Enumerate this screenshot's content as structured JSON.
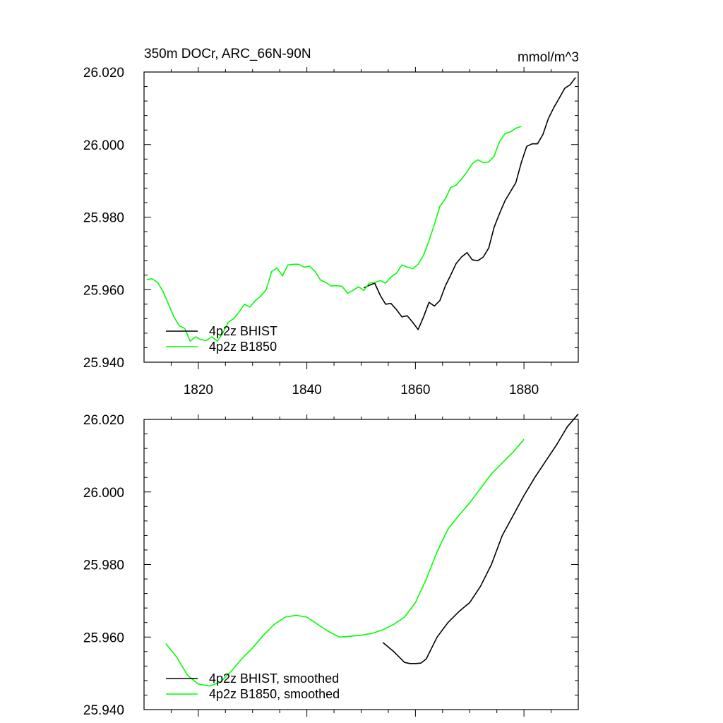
{
  "chart_data": [
    {
      "type": "line",
      "title_left": "350m DOCr, ARC_66N-90N",
      "title_right": "mmol/m^3",
      "xlim": [
        1810,
        1890
      ],
      "ylim": [
        25.94,
        26.02
      ],
      "x_ticks": [
        1820,
        1840,
        1860,
        1880
      ],
      "x_tick_labels": [
        "1820",
        "1840",
        "1860",
        "1880"
      ],
      "y_ticks": [
        25.94,
        25.96,
        25.98,
        26.0,
        26.02
      ],
      "y_tick_labels": [
        "25.940",
        "25.960",
        "25.980",
        "26.000",
        "26.020"
      ],
      "legend": [
        {
          "label": "4p2z BHIST",
          "color": "#000000"
        },
        {
          "label": "4p2z B1850",
          "color": "#00ff00"
        }
      ],
      "series": [
        {
          "name": "4p2z BHIST",
          "color": "#000000",
          "x": [
            1850.5,
            1851.5,
            1852.5,
            1853.5,
            1854.5,
            1855.5,
            1856.5,
            1857.5,
            1858.5,
            1859.5,
            1860.5,
            1861.5,
            1862.5,
            1863.5,
            1864.5,
            1865.5,
            1866.5,
            1867.5,
            1868.5,
            1869.5,
            1870.5,
            1871.5,
            1872.5,
            1873.5,
            1874.5,
            1875.5,
            1876.5,
            1877.5,
            1878.5,
            1879.5,
            1880.5,
            1881.5,
            1882.5,
            1883.5,
            1884.5,
            1885.5,
            1886.5,
            1887.5,
            1888.5,
            1889.5
          ],
          "y": [
            25.9605,
            25.9612,
            25.9618,
            25.9585,
            25.956,
            25.9562,
            25.9545,
            25.9525,
            25.9528,
            25.951,
            25.949,
            25.9525,
            25.9565,
            25.9555,
            25.957,
            25.961,
            25.964,
            25.9672,
            25.969,
            25.9702,
            25.9682,
            25.968,
            25.969,
            25.9715,
            25.9772,
            25.981,
            25.9845,
            25.987,
            25.9895,
            25.995,
            25.9995,
            26.0002,
            26.0002,
            26.0028,
            26.0072,
            26.0102,
            26.0128,
            26.0155,
            26.0165,
            26.0185
          ]
        },
        {
          "name": "4p2z B1850",
          "color": "#00ff00",
          "x": [
            1810.5,
            1811.5,
            1812.5,
            1813.5,
            1814.5,
            1815.5,
            1816.5,
            1817.5,
            1818.5,
            1819.5,
            1820.5,
            1821.5,
            1822.5,
            1823.5,
            1824.5,
            1825.5,
            1826.5,
            1827.5,
            1828.5,
            1829.5,
            1830.5,
            1831.5,
            1832.5,
            1833.5,
            1834.5,
            1835.5,
            1836.5,
            1837.5,
            1838.5,
            1839.5,
            1840.5,
            1841.5,
            1842.5,
            1843.5,
            1844.5,
            1845.5,
            1846.5,
            1847.5,
            1848.5,
            1849.5,
            1850.5,
            1851.5,
            1852.5,
            1853.5,
            1854.5,
            1855.5,
            1856.5,
            1857.5,
            1858.5,
            1859.5,
            1860.5,
            1861.5,
            1862.5,
            1863.5,
            1864.5,
            1865.5,
            1866.5,
            1867.5,
            1868.5,
            1869.5,
            1870.5,
            1871.5,
            1872.5,
            1873.5,
            1874.5,
            1875.5,
            1876.5,
            1877.5,
            1878.5,
            1879.5
          ],
          "y": [
            25.9628,
            25.963,
            25.962,
            25.9595,
            25.956,
            25.9525,
            25.95,
            25.9493,
            25.9458,
            25.947,
            25.9462,
            25.946,
            25.947,
            25.9458,
            25.948,
            25.951,
            25.952,
            25.9538,
            25.956,
            25.9552,
            25.957,
            25.9582,
            25.96,
            25.965,
            25.966,
            25.9638,
            25.9668,
            25.967,
            25.967,
            25.9662,
            25.9665,
            25.965,
            25.9627,
            25.962,
            25.961,
            25.9611,
            25.9609,
            25.959,
            25.9598,
            25.9608,
            25.9598,
            25.9618,
            25.962,
            25.9625,
            25.9618,
            25.9635,
            25.9645,
            25.9668,
            25.9662,
            25.9658,
            25.967,
            25.9695,
            25.9735,
            25.978,
            25.983,
            25.985,
            25.9882,
            25.9888,
            25.9905,
            25.9925,
            25.9948,
            25.9958,
            25.995,
            25.9952,
            25.9968,
            26.0008,
            26.003,
            26.0035,
            26.0045,
            26.005
          ]
        }
      ]
    },
    {
      "type": "line",
      "xlim": [
        1810,
        1890
      ],
      "ylim": [
        25.94,
        26.02
      ],
      "y_ticks": [
        25.94,
        25.96,
        25.98,
        26.0,
        26.02
      ],
      "y_tick_labels": [
        "25.940",
        "25.960",
        "25.980",
        "26.000",
        "26.020"
      ],
      "legend": [
        {
          "label": "4p2z BHIST, smoothed",
          "color": "#000000"
        },
        {
          "label": "4p2z B1850, smoothed",
          "color": "#00ff00"
        }
      ],
      "series": [
        {
          "name": "4p2z BHIST, smoothed",
          "color": "#000000",
          "x": [
            1854,
            1856,
            1858,
            1859,
            1860,
            1861,
            1862,
            1863,
            1864,
            1866,
            1868,
            1870,
            1872,
            1874,
            1876,
            1878,
            1880,
            1882,
            1884,
            1886,
            1888,
            1890
          ],
          "y": [
            25.9585,
            25.956,
            25.953,
            25.9527,
            25.9527,
            25.9528,
            25.954,
            25.957,
            25.96,
            25.964,
            25.967,
            25.9695,
            25.974,
            25.98,
            25.988,
            25.9935,
            25.999,
            26.004,
            26.0085,
            26.013,
            26.018,
            26.0215
          ]
        },
        {
          "name": "4p2z B1850, smoothed",
          "color": "#00ff00",
          "x": [
            1814,
            1816,
            1818,
            1820,
            1822,
            1824,
            1826,
            1828,
            1830,
            1832,
            1834,
            1836,
            1838,
            1840,
            1842,
            1844,
            1846,
            1848,
            1850,
            1852,
            1854,
            1856,
            1858,
            1860,
            1862,
            1864,
            1866,
            1868,
            1870,
            1872,
            1874,
            1876,
            1878,
            1880
          ],
          "y": [
            25.9582,
            25.9545,
            25.9495,
            25.947,
            25.9465,
            25.9475,
            25.9505,
            25.954,
            25.957,
            25.9605,
            25.9635,
            25.9655,
            25.966,
            25.9655,
            25.9635,
            25.9615,
            25.96,
            25.9602,
            25.9605,
            25.961,
            25.962,
            25.9635,
            25.9655,
            25.9695,
            25.976,
            25.9835,
            25.9898,
            25.9935,
            25.997,
            26.001,
            26.005,
            26.008,
            26.011,
            26.0145
          ]
        }
      ]
    }
  ]
}
